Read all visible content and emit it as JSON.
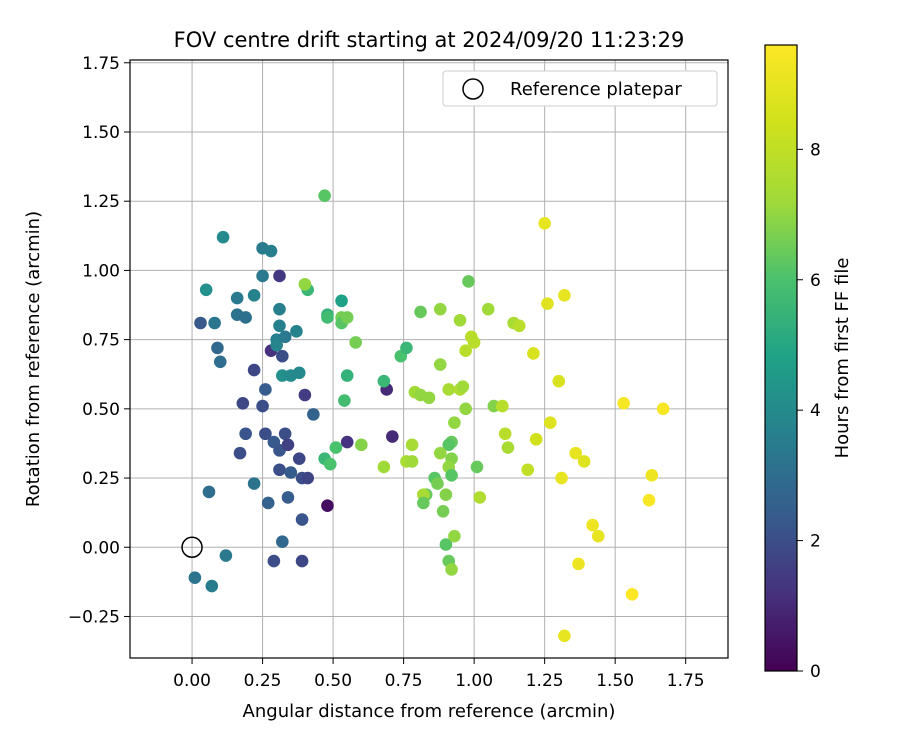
{
  "chart_data": {
    "type": "scatter",
    "title": "FOV centre drift starting at 2024/09/20 11:23:29",
    "xlabel": "Angular distance from reference (arcmin)",
    "ylabel": "Rotation from reference (arcmin)",
    "xlim": [
      -0.22,
      1.9
    ],
    "ylim": [
      -0.4,
      1.76
    ],
    "xticks": [
      "0.00",
      "0.25",
      "0.50",
      "0.75",
      "1.00",
      "1.25",
      "1.50",
      "1.75"
    ],
    "yticks": [
      "−0.25",
      "0.00",
      "0.25",
      "0.50",
      "0.75",
      "1.00",
      "1.25",
      "1.50",
      "1.75"
    ],
    "grid": true,
    "legend": {
      "position": "top-right",
      "entries": [
        "Reference platepar"
      ]
    },
    "colorbar": {
      "label": "Hours from first FF file",
      "range": [
        0,
        9.6
      ],
      "ticks": [
        "0",
        "2",
        "4",
        "6",
        "8"
      ],
      "colormap": "viridis"
    },
    "reference_point": {
      "x": 0.0,
      "y": 0.0,
      "marker": "open-circle"
    },
    "series": [
      {
        "points": [
          {
            "x": 0.11,
            "y": 1.12,
            "c": 4.0
          },
          {
            "x": 0.05,
            "y": 0.93,
            "c": 4.2
          },
          {
            "x": 0.03,
            "y": 0.81,
            "c": 2.3
          },
          {
            "x": 0.08,
            "y": 0.81,
            "c": 3.3
          },
          {
            "x": 0.09,
            "y": 0.72,
            "c": 2.8
          },
          {
            "x": 0.1,
            "y": 0.67,
            "c": 3.0
          },
          {
            "x": 0.16,
            "y": 0.9,
            "c": 3.4
          },
          {
            "x": 0.16,
            "y": 0.84,
            "c": 3.2
          },
          {
            "x": 0.19,
            "y": 0.83,
            "c": 3.1
          },
          {
            "x": 0.22,
            "y": 0.91,
            "c": 3.7
          },
          {
            "x": 0.25,
            "y": 1.08,
            "c": 3.5
          },
          {
            "x": 0.28,
            "y": 1.07,
            "c": 3.6
          },
          {
            "x": 0.25,
            "y": 0.98,
            "c": 3.4
          },
          {
            "x": 0.31,
            "y": 0.98,
            "c": 1.4
          },
          {
            "x": 0.22,
            "y": 0.64,
            "c": 1.8
          },
          {
            "x": 0.26,
            "y": 0.57,
            "c": 2.4
          },
          {
            "x": 0.18,
            "y": 0.52,
            "c": 1.8
          },
          {
            "x": 0.25,
            "y": 0.51,
            "c": 2.0
          },
          {
            "x": 0.19,
            "y": 0.41,
            "c": 2.2
          },
          {
            "x": 0.26,
            "y": 0.41,
            "c": 2.0
          },
          {
            "x": 0.17,
            "y": 0.34,
            "c": 2.0
          },
          {
            "x": 0.28,
            "y": 0.71,
            "c": 1.2
          },
          {
            "x": 0.3,
            "y": 0.75,
            "c": 3.6
          },
          {
            "x": 0.3,
            "y": 0.73,
            "c": 3.8
          },
          {
            "x": 0.31,
            "y": 0.86,
            "c": 3.6
          },
          {
            "x": 0.31,
            "y": 0.8,
            "c": 3.6
          },
          {
            "x": 0.32,
            "y": 0.69,
            "c": 2.0
          },
          {
            "x": 0.33,
            "y": 0.76,
            "c": 3.4
          },
          {
            "x": 0.37,
            "y": 0.78,
            "c": 3.7
          },
          {
            "x": 0.32,
            "y": 0.62,
            "c": 4.2
          },
          {
            "x": 0.35,
            "y": 0.62,
            "c": 4.0
          },
          {
            "x": 0.38,
            "y": 0.63,
            "c": 3.9
          },
          {
            "x": 0.4,
            "y": 0.55,
            "c": 1.5
          },
          {
            "x": 0.29,
            "y": 0.38,
            "c": 2.3
          },
          {
            "x": 0.31,
            "y": 0.35,
            "c": 2.2
          },
          {
            "x": 0.33,
            "y": 0.41,
            "c": 2.0
          },
          {
            "x": 0.34,
            "y": 0.37,
            "c": 1.6
          },
          {
            "x": 0.38,
            "y": 0.32,
            "c": 1.8
          },
          {
            "x": 0.31,
            "y": 0.28,
            "c": 2.0
          },
          {
            "x": 0.35,
            "y": 0.27,
            "c": 2.4
          },
          {
            "x": 0.39,
            "y": 0.25,
            "c": 2.0
          },
          {
            "x": 0.41,
            "y": 0.25,
            "c": 1.7
          },
          {
            "x": 0.43,
            "y": 0.48,
            "c": 2.6
          },
          {
            "x": 0.22,
            "y": 0.23,
            "c": 3.2
          },
          {
            "x": 0.27,
            "y": 0.16,
            "c": 2.6
          },
          {
            "x": 0.34,
            "y": 0.18,
            "c": 2.4
          },
          {
            "x": 0.39,
            "y": 0.1,
            "c": 2.2
          },
          {
            "x": 0.06,
            "y": 0.2,
            "c": 3.0
          },
          {
            "x": 0.12,
            "y": -0.03,
            "c": 3.4
          },
          {
            "x": 0.01,
            "y": -0.11,
            "c": 3.2
          },
          {
            "x": 0.07,
            "y": -0.14,
            "c": 3.5
          },
          {
            "x": 0.32,
            "y": 0.02,
            "c": 2.8
          },
          {
            "x": 0.29,
            "y": -0.05,
            "c": 2.0
          },
          {
            "x": 0.39,
            "y": -0.05,
            "c": 1.8
          },
          {
            "x": 0.41,
            "y": 0.93,
            "c": 5.6
          },
          {
            "x": 0.4,
            "y": 0.95,
            "c": 7.0
          },
          {
            "x": 0.47,
            "y": 1.27,
            "c": 6.2
          },
          {
            "x": 0.48,
            "y": 0.84,
            "c": 5.4
          },
          {
            "x": 0.48,
            "y": 0.83,
            "c": 5.8
          },
          {
            "x": 0.53,
            "y": 0.89,
            "c": 4.8
          },
          {
            "x": 0.53,
            "y": 0.83,
            "c": 6.6
          },
          {
            "x": 0.53,
            "y": 0.81,
            "c": 6.2
          },
          {
            "x": 0.55,
            "y": 0.83,
            "c": 6.6
          },
          {
            "x": 0.58,
            "y": 0.74,
            "c": 6.6
          },
          {
            "x": 0.55,
            "y": 0.62,
            "c": 5.4
          },
          {
            "x": 0.54,
            "y": 0.53,
            "c": 5.8
          },
          {
            "x": 0.51,
            "y": 0.36,
            "c": 6.0
          },
          {
            "x": 0.47,
            "y": 0.32,
            "c": 5.6
          },
          {
            "x": 0.49,
            "y": 0.3,
            "c": 6.0
          },
          {
            "x": 0.48,
            "y": 0.15,
            "c": 0.3
          },
          {
            "x": 0.55,
            "y": 0.38,
            "c": 1.2
          },
          {
            "x": 0.6,
            "y": 0.37,
            "c": 6.8
          },
          {
            "x": 0.71,
            "y": 0.4,
            "c": 1.0
          },
          {
            "x": 0.69,
            "y": 0.57,
            "c": 1.0
          },
          {
            "x": 0.68,
            "y": 0.6,
            "c": 5.6
          },
          {
            "x": 0.74,
            "y": 0.69,
            "c": 6.0
          },
          {
            "x": 0.76,
            "y": 0.72,
            "c": 5.6
          },
          {
            "x": 0.68,
            "y": 0.29,
            "c": 7.2
          },
          {
            "x": 0.76,
            "y": 0.31,
            "c": 7.4
          },
          {
            "x": 0.78,
            "y": 0.31,
            "c": 7.2
          },
          {
            "x": 0.78,
            "y": 0.37,
            "c": 7.4
          },
          {
            "x": 0.79,
            "y": 0.56,
            "c": 7.2
          },
          {
            "x": 0.81,
            "y": 0.55,
            "c": 7.0
          },
          {
            "x": 0.84,
            "y": 0.54,
            "c": 7.0
          },
          {
            "x": 0.81,
            "y": 0.85,
            "c": 6.4
          },
          {
            "x": 0.88,
            "y": 0.86,
            "c": 7.0
          },
          {
            "x": 0.88,
            "y": 0.66,
            "c": 7.0
          },
          {
            "x": 0.91,
            "y": 0.57,
            "c": 7.4
          },
          {
            "x": 0.93,
            "y": 0.45,
            "c": 7.0
          },
          {
            "x": 0.95,
            "y": 0.57,
            "c": 7.6
          },
          {
            "x": 0.96,
            "y": 0.58,
            "c": 7.2
          },
          {
            "x": 0.95,
            "y": 0.82,
            "c": 7.2
          },
          {
            "x": 0.97,
            "y": 0.71,
            "c": 7.8
          },
          {
            "x": 0.99,
            "y": 0.76,
            "c": 7.8
          },
          {
            "x": 1.0,
            "y": 0.74,
            "c": 7.8
          },
          {
            "x": 0.98,
            "y": 0.96,
            "c": 6.4
          },
          {
            "x": 0.97,
            "y": 0.5,
            "c": 7.0
          },
          {
            "x": 0.92,
            "y": 0.38,
            "c": 6.4
          },
          {
            "x": 0.91,
            "y": 0.37,
            "c": 6.2
          },
          {
            "x": 0.88,
            "y": 0.34,
            "c": 7.0
          },
          {
            "x": 0.92,
            "y": 0.32,
            "c": 6.8
          },
          {
            "x": 0.91,
            "y": 0.29,
            "c": 7.0
          },
          {
            "x": 0.92,
            "y": 0.26,
            "c": 6.2
          },
          {
            "x": 0.86,
            "y": 0.25,
            "c": 6.2
          },
          {
            "x": 0.87,
            "y": 0.23,
            "c": 6.6
          },
          {
            "x": 0.83,
            "y": 0.19,
            "c": 6.4
          },
          {
            "x": 0.82,
            "y": 0.19,
            "c": 7.4
          },
          {
            "x": 0.82,
            "y": 0.16,
            "c": 6.4
          },
          {
            "x": 0.9,
            "y": 0.19,
            "c": 6.8
          },
          {
            "x": 0.89,
            "y": 0.13,
            "c": 6.6
          },
          {
            "x": 0.9,
            "y": 0.01,
            "c": 6.2
          },
          {
            "x": 0.93,
            "y": 0.04,
            "c": 7.0
          },
          {
            "x": 0.91,
            "y": -0.05,
            "c": 6.4
          },
          {
            "x": 0.92,
            "y": -0.08,
            "c": 7.0
          },
          {
            "x": 1.01,
            "y": 0.29,
            "c": 6.4
          },
          {
            "x": 1.02,
            "y": 0.18,
            "c": 7.6
          },
          {
            "x": 1.05,
            "y": 0.86,
            "c": 7.2
          },
          {
            "x": 1.07,
            "y": 0.51,
            "c": 6.8
          },
          {
            "x": 1.1,
            "y": 0.51,
            "c": 7.8
          },
          {
            "x": 1.11,
            "y": 0.41,
            "c": 7.8
          },
          {
            "x": 1.12,
            "y": 0.36,
            "c": 7.4
          },
          {
            "x": 1.14,
            "y": 0.81,
            "c": 7.4
          },
          {
            "x": 1.16,
            "y": 0.8,
            "c": 7.8
          },
          {
            "x": 1.19,
            "y": 0.28,
            "c": 8.0
          },
          {
            "x": 1.21,
            "y": 0.7,
            "c": 8.6
          },
          {
            "x": 1.22,
            "y": 0.39,
            "c": 8.4
          },
          {
            "x": 1.25,
            "y": 1.17,
            "c": 9.0
          },
          {
            "x": 1.26,
            "y": 0.88,
            "c": 8.8
          },
          {
            "x": 1.27,
            "y": 0.45,
            "c": 8.8
          },
          {
            "x": 1.3,
            "y": 0.6,
            "c": 8.6
          },
          {
            "x": 1.31,
            "y": 0.25,
            "c": 9.0
          },
          {
            "x": 1.32,
            "y": 0.91,
            "c": 9.0
          },
          {
            "x": 1.32,
            "y": -0.32,
            "c": 9.0
          },
          {
            "x": 1.36,
            "y": 0.34,
            "c": 9.0
          },
          {
            "x": 1.37,
            "y": -0.06,
            "c": 9.2
          },
          {
            "x": 1.39,
            "y": 0.31,
            "c": 8.8
          },
          {
            "x": 1.42,
            "y": 0.08,
            "c": 9.2
          },
          {
            "x": 1.44,
            "y": 0.04,
            "c": 9.0
          },
          {
            "x": 1.53,
            "y": 0.52,
            "c": 9.4
          },
          {
            "x": 1.56,
            "y": -0.17,
            "c": 9.6
          },
          {
            "x": 1.62,
            "y": 0.17,
            "c": 9.4
          },
          {
            "x": 1.63,
            "y": 0.26,
            "c": 9.2
          },
          {
            "x": 1.67,
            "y": 0.5,
            "c": 9.4
          }
        ]
      }
    ]
  }
}
